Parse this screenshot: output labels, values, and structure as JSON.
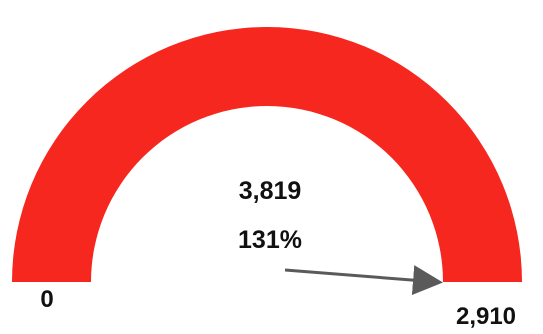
{
  "chart_data": {
    "type": "gauge",
    "min_label": "0",
    "max_label": "2,910",
    "value_label": "3,819",
    "percent_label": "131%",
    "min": 0,
    "max": 2910,
    "value": 3819,
    "percent": 131
  },
  "colors": {
    "arc": "#f5271e",
    "needle": "#5a5a5a",
    "text": "#111111"
  }
}
